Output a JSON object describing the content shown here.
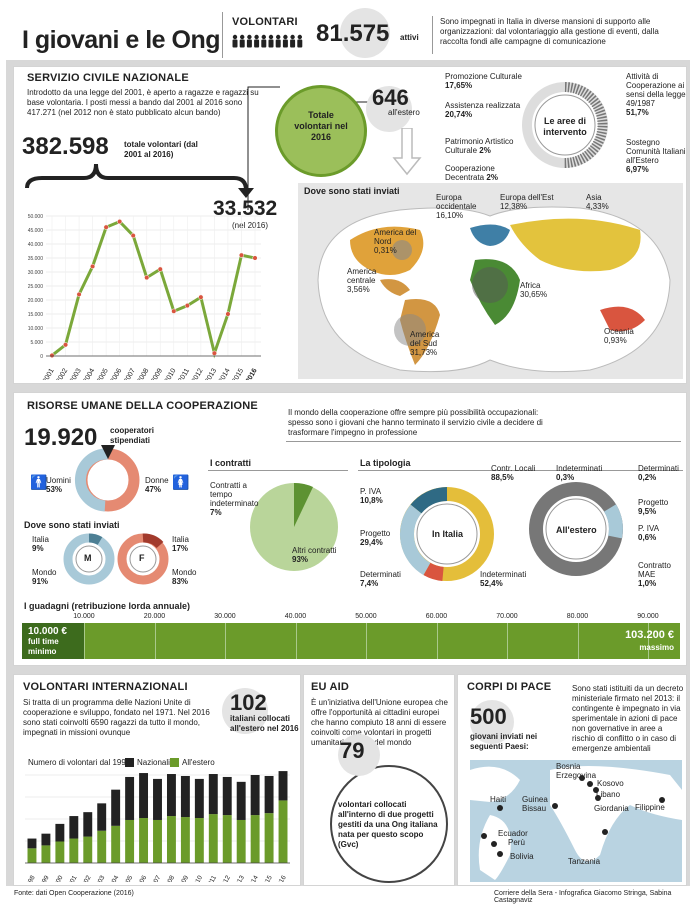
{
  "title": "I giovani e le Ong",
  "volontari": {
    "label": "VOLONTARI",
    "number": "81.575",
    "unit": "attivi",
    "text": "Sono impegnati in Italia in diverse mansioni di supporto alle organizzazioni: dal volontariaggio alla gestione di eventi, dalla raccolta fondi alle campagne di comunicazione"
  },
  "servizio": {
    "title": "SERVIZIO CIVILE NAZIONALE",
    "text": "Introdotto da una legge del 2001, è aperto a ragazze e ragazzi su base volontaria. I posti messi a bando dal 2001 al 2016 sono 417.271 (nel 2012 non è stato pubblicato alcun bando)",
    "total": "382.598",
    "total_label": "totale volontari (dal 2001 al 2016)",
    "y2016": "33.532",
    "y2016_label": "(nel 2016)",
    "totale2016_label": "Totale volontari nel 2016",
    "estero": "646",
    "estero_label": "all'estero"
  },
  "aree": {
    "center": "Le aree di intervento",
    "items": [
      {
        "name": "Promozione Culturale",
        "pct": "17,65%"
      },
      {
        "name": "Assistenza realizzata",
        "pct": "20,74%"
      },
      {
        "name": "Patrimonio Artistico Culturale",
        "pct": "2%"
      },
      {
        "name": "Cooperazione Decentrata",
        "pct": "2%"
      },
      {
        "name": "Attività di Cooperazione ai sensi della legge 49/1987",
        "pct": "51,7%"
      },
      {
        "name": "Sostegno Comunità Italiani all'Estero",
        "pct": "6,97%"
      }
    ]
  },
  "map1": {
    "title": "Dove sono stati inviati",
    "regions": [
      {
        "name": "Europa occidentale",
        "pct": "16,10%"
      },
      {
        "name": "Europa dell'Est",
        "pct": "12,38%"
      },
      {
        "name": "Asia",
        "pct": "4,33%"
      },
      {
        "name": "America del Nord",
        "pct": "0,31%"
      },
      {
        "name": "America centrale",
        "pct": "3,56%"
      },
      {
        "name": "Africa",
        "pct": "30,65%"
      },
      {
        "name": "America del Sud",
        "pct": "31,73%"
      },
      {
        "name": "Oceania",
        "pct": "0,93%"
      }
    ]
  },
  "risorse": {
    "title": "RISORSE UMANE DELLA COOPERAZIONE",
    "text": "Il mondo della cooperazione offre sempre più possibilità occupazionali: spesso sono i giovani che hanno terminato il servizio civile a decidere di trasformare l'impegno in professione",
    "number": "19.920",
    "number_label": "cooperatori stipendiati",
    "uomini": "Uomini",
    "uomini_pct": "53%",
    "donne": "Donne",
    "donne_pct": "47%",
    "inviati_title": "Dove sono stati inviati",
    "m_italia": "Italia",
    "m_italia_pct": "9%",
    "m_mondo": "Mondo",
    "m_mondo_pct": "91%",
    "f_italia": "Italia",
    "f_italia_pct": "17%",
    "f_mondo": "Mondo",
    "f_mondo_pct": "83%",
    "m": "M",
    "f": "F",
    "contratti_title": "I contratti",
    "contratti_tempo": "Contratti a tempo indeterminato",
    "contratti_tempo_pct": "7%",
    "altri": "Altri contratti",
    "altri_pct": "93%",
    "tipologia_title": "La tipologia",
    "italia_center": "In Italia",
    "estero_center": "All'estero",
    "it_piva": "P. IVA",
    "it_piva_pct": "10,8%",
    "it_progetto": "Progetto",
    "it_progetto_pct": "29,4%",
    "it_det": "Determinati",
    "it_det_pct": "7,4%",
    "it_indet": "Indeterminati",
    "it_indet_pct": "52,4%",
    "es_locali": "Contr. Locali",
    "es_locali_pct": "88,5%",
    "es_indet": "Indeterminati",
    "es_indet_pct": "0,3%",
    "es_det": "Determinati",
    "es_det_pct": "0,2%",
    "es_progetto": "Progetto",
    "es_progetto_pct": "9,5%",
    "es_piva": "P. IVA",
    "es_piva_pct": "0,6%",
    "es_mae": "Contratto MAE",
    "es_mae_pct": "1,0%",
    "guadagni_title": "I guadagni (retribuzione lorda annuale)",
    "min_value": "10.000 €",
    "min_label1": "full time",
    "min_label2": "minimo",
    "max_value": "103.200 €",
    "max_label": "massimo",
    "ticks": [
      "10.000",
      "20.000",
      "30.000",
      "40.000",
      "50.000",
      "60.000",
      "70.000",
      "80.000",
      "90.000"
    ]
  },
  "internazionali": {
    "title": "VOLONTARI INTERNAZIONALI",
    "text": "Si tratta di un programma delle Nazioni Unite di cooperazione e sviluppo, fondato nel 1971. Nel 2016 sono stati coinvolti 6590 ragazzi da tutto il mondo, impegnati in missioni ovunque",
    "number": "102",
    "number_label": "italiani collocati all'estero nel 2016",
    "chart_caption": "Numero di volontari dal 1998",
    "legend_naz": "Nazionali",
    "legend_est": "All'estero"
  },
  "euaid": {
    "title": "EU AID",
    "text": "È un'iniziativa dell'Unione europea che offre l'opportunità ai cittadini europei che hanno compiuto 18 anni di essere coinvolti come volontari in progetti umanitari nel sud del mondo",
    "number": "79",
    "number_label": "volontari collocati all'interno di due progetti gestiti da una Ong italiana nata per questo scopo (Gvc)"
  },
  "corpi": {
    "title": "CORPI DI PACE",
    "text": "Sono stati istituiti da un decreto ministeriale firmato nel 2013: il contingente è impegnato in via sperimentale in azioni di pace non governative in aree a rischio di conflitto o in caso di emergenze ambientali",
    "number": "500",
    "number_label": "giovani inviati nei seguenti Paesi:",
    "countries": [
      "Bosnia Erzegovina",
      "Kosovo",
      "Libano",
      "Giordania",
      "Haiti",
      "Guinea Bissau",
      "Filippine",
      "Ecuador",
      "Perù",
      "Bolivia",
      "Tanzania"
    ]
  },
  "footer": {
    "source": "Fonte: dati Open Cooperazione (2016)",
    "credits": "Corriere della Sera - Infografica Giacomo Stringa, Sabina Castagnaviz"
  },
  "chart_data": [
    {
      "type": "line",
      "title": "Servizio civile nazionale",
      "categories": [
        "2001",
        "2002",
        "2003",
        "2004",
        "2005",
        "2006",
        "2007",
        "2008",
        "2009",
        "2010",
        "2011",
        "2012",
        "2013",
        "2014",
        "2015",
        "2016"
      ],
      "values": [
        200,
        4000,
        22000,
        32000,
        46000,
        48000,
        43000,
        28000,
        31000,
        16000,
        18000,
        21000,
        1000,
        15000,
        36000,
        35000
      ],
      "ylim": [
        0,
        50000
      ],
      "yticks": [
        "50.000",
        "45.000",
        "40.000",
        "35.000",
        "30.000",
        "25.000",
        "20.000",
        "15.000",
        "10.000",
        "5.000",
        "0"
      ]
    },
    {
      "type": "bar",
      "title": "Numero di volontari dal 1998",
      "categories": [
        "1998",
        "1999",
        "2000",
        "2001",
        "2002",
        "2003",
        "2004",
        "2005",
        "2006",
        "2007",
        "2008",
        "2009",
        "2010",
        "2011",
        "2012",
        "2013",
        "2014",
        "2015",
        "2016"
      ],
      "series": [
        {
          "name": "Nazionali",
          "values": [
            1000,
            1200,
            1800,
            2300,
            2500,
            2800,
            3700,
            4400,
            4600,
            4200,
            4300,
            4200,
            4000,
            4100,
            3900,
            3900,
            4100,
            3800,
            3000
          ]
        },
        {
          "name": "All'estero",
          "values": [
            1500,
            1800,
            2200,
            2500,
            2700,
            3300,
            3800,
            4400,
            4600,
            4400,
            4800,
            4700,
            4600,
            5000,
            4900,
            4400,
            4900,
            5100,
            6400
          ]
        }
      ],
      "ylim": [
        0,
        9000
      ]
    }
  ]
}
